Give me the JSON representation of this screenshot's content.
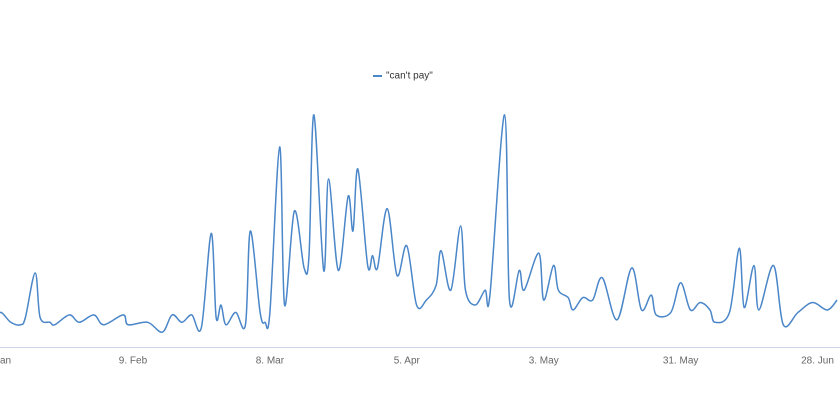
{
  "chart_data": {
    "type": "line",
    "legend": "top",
    "series": [
      {
        "name": "\"can't pay\"",
        "color": "#4a86c8",
        "x": [
          0,
          1,
          3,
          5,
          6,
          8,
          9,
          11,
          12,
          15,
          17,
          20,
          22,
          26,
          27,
          31,
          34,
          36,
          38,
          40,
          42,
          44,
          45,
          46,
          47,
          49,
          51,
          52,
          54,
          55,
          56,
          58,
          59,
          61,
          63,
          64,
          65,
          67,
          68,
          70,
          72,
          73,
          74,
          76,
          77,
          78,
          80,
          82,
          84,
          86,
          88,
          90,
          91,
          93,
          95,
          96,
          98,
          100,
          101,
          104,
          105,
          107,
          108,
          111,
          112,
          114,
          115,
          117,
          118,
          120,
          122,
          124,
          127,
          130,
          132,
          134,
          135,
          138,
          140,
          142,
          144,
          146,
          147,
          150,
          152,
          153,
          155,
          156,
          159,
          161,
          164,
          167,
          170,
          172
        ],
        "values": [
          11,
          14,
          10,
          9,
          12,
          30,
          12,
          10,
          9,
          13,
          10,
          13,
          9,
          13,
          9,
          10,
          6,
          13,
          10,
          13,
          8,
          46,
          12,
          17,
          9,
          14,
          9,
          47,
          14,
          10,
          14,
          81,
          17,
          55,
          32,
          37,
          94,
          31,
          68,
          31,
          61,
          47,
          72,
          33,
          37,
          32,
          56,
          29,
          41,
          17,
          19,
          25,
          39,
          23,
          49,
          23,
          17,
          23,
          21,
          94,
          19,
          31,
          23,
          38,
          19,
          33,
          23,
          20,
          15,
          20,
          19,
          28,
          11,
          32,
          15,
          21,
          13,
          14,
          26,
          15,
          18,
          15,
          10,
          14,
          40,
          16,
          33,
          15,
          33,
          9,
          14,
          18,
          15,
          19
        ]
      }
    ],
    "xlim": [
      0.8,
      172.6
    ],
    "xticks": [
      {
        "value": 0,
        "label": "an"
      },
      {
        "value": 28,
        "label": "9. Feb"
      },
      {
        "value": 56,
        "label": "8. Mar"
      },
      {
        "value": 84,
        "label": "5. Apr"
      },
      {
        "value": 112,
        "label": "3. May"
      },
      {
        "value": 140,
        "label": "31. May"
      },
      {
        "value": 168,
        "label": "28. Jun"
      }
    ],
    "ylim": [
      0,
      100
    ]
  }
}
